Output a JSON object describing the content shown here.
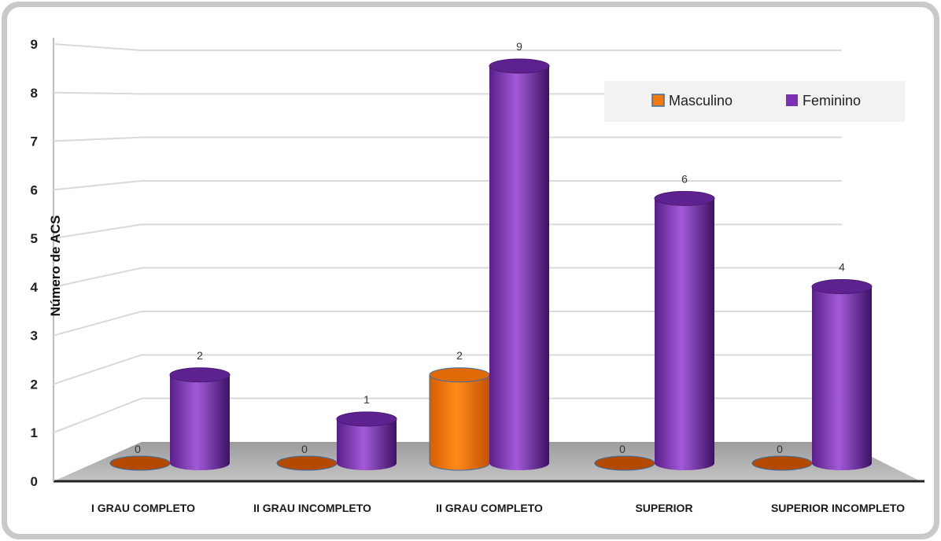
{
  "chart_data": {
    "type": "bar",
    "title": "",
    "xlabel": "",
    "ylabel": "Número de ACS",
    "ylim": [
      0,
      9
    ],
    "yticks": [
      "0",
      "1",
      "2",
      "3",
      "4",
      "5",
      "6",
      "7",
      "8",
      "9"
    ],
    "categories": [
      "I GRAU COMPLETO",
      "II GRAU INCOMPLETO",
      "II GRAU COMPLETO",
      "SUPERIOR",
      "SUPERIOR INCOMPLETO"
    ],
    "series": [
      {
        "name": "Masculino",
        "values": [
          0,
          0,
          2,
          0,
          0
        ],
        "color": "#f07a10"
      },
      {
        "name": "Feminino",
        "values": [
          2,
          1,
          9,
          6,
          4
        ],
        "color": "#8e3fc4"
      }
    ],
    "grid": true,
    "legend_position": "top-right",
    "shape": "cylinder"
  }
}
